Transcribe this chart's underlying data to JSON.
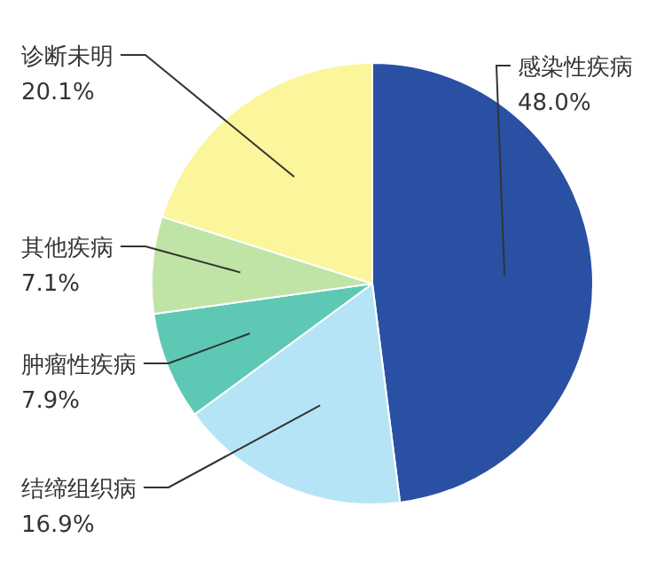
{
  "chart_data": {
    "type": "pie",
    "categories": [
      "感染性疾病",
      "结缔组织病",
      "肿瘤性疾病",
      "其他疾病",
      "诊断未明"
    ],
    "values": [
      48.0,
      16.9,
      7.9,
      7.1,
      20.1
    ],
    "value_labels": [
      "48.0%",
      "16.9%",
      "7.9%",
      "7.1%",
      "20.1%"
    ],
    "colors": [
      "#2a50a3",
      "#b5e4f6",
      "#5dc9b5",
      "#c0e4a6",
      "#fbf59c"
    ],
    "legend": false
  }
}
